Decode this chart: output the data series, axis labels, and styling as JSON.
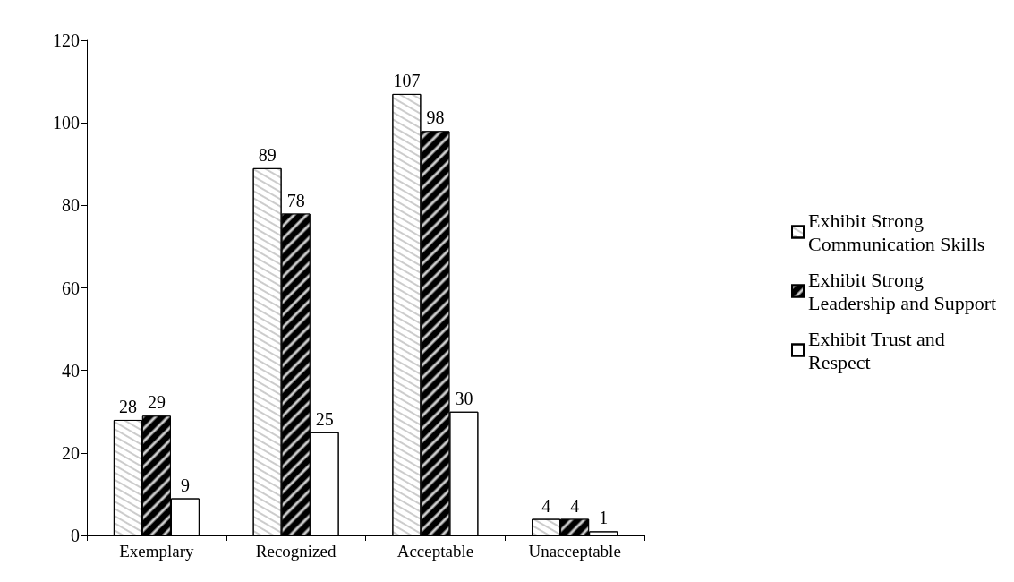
{
  "chart_data": {
    "type": "bar",
    "categories": [
      "Exemplary",
      "Recognized",
      "Acceptable",
      "Unacceptable"
    ],
    "series": [
      {
        "name": "Exhibit Strong Communication Skills",
        "color": "#ffffff",
        "values": [
          28,
          89,
          107,
          4
        ]
      },
      {
        "name": "Exhibit Strong Leadership and Support",
        "color": "#000000",
        "values": [
          29,
          78,
          98,
          4
        ]
      },
      {
        "name": "Exhibit Trust and Respect",
        "color": "#ffffff",
        "values": [
          9,
          25,
          30,
          1
        ]
      }
    ],
    "ylim": [
      0,
      120
    ],
    "yticks": [
      0,
      20,
      40,
      60,
      80,
      100,
      120
    ],
    "grid": false,
    "legend": "right",
    "data_labels": true
  }
}
